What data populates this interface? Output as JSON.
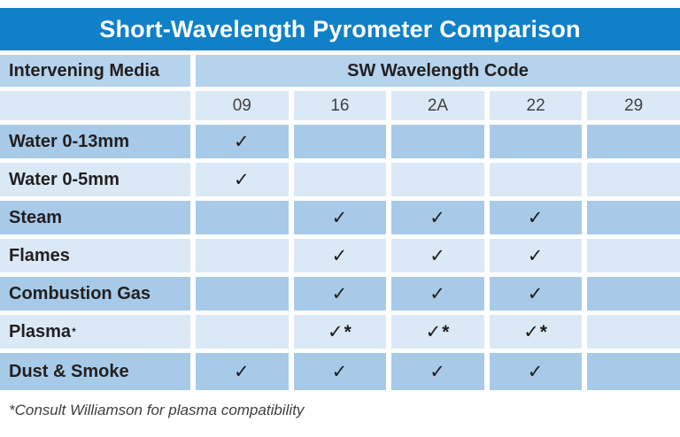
{
  "title": "Short-Wavelength Pyrometer Comparison",
  "table": {
    "header": {
      "media_label": "Intervening Media",
      "code_label": "SW Wavelength Code"
    },
    "codes": [
      "09",
      "16",
      "2A",
      "22",
      "29"
    ],
    "rows": [
      {
        "label": "Water 0-13mm",
        "sup": "",
        "cells": [
          "✓",
          "",
          "",
          "",
          ""
        ]
      },
      {
        "label": "Water 0-5mm",
        "sup": "",
        "cells": [
          "✓",
          "",
          "",
          "",
          ""
        ]
      },
      {
        "label": "Steam",
        "sup": "",
        "cells": [
          "",
          "✓",
          "✓",
          "✓",
          ""
        ]
      },
      {
        "label": "Flames",
        "sup": "",
        "cells": [
          "",
          "✓",
          "✓",
          "✓",
          ""
        ]
      },
      {
        "label": "Combustion Gas",
        "sup": "",
        "cells": [
          "",
          "✓",
          "✓",
          "✓",
          ""
        ]
      },
      {
        "label": "Plasma",
        "sup": "*",
        "cells": [
          "",
          "✓*",
          "✓*",
          "✓*",
          ""
        ]
      },
      {
        "label": "Dust & Smoke",
        "sup": "",
        "cells": [
          "✓",
          "✓",
          "✓",
          "✓",
          ""
        ]
      }
    ],
    "footnote": "*Consult Williamson for plasma compatibility"
  },
  "colors": {
    "title_bar": "#1080c8",
    "title_text": "#ffffff",
    "header_cell": "#b5d3ec",
    "row_dark": "#a7cae8",
    "row_light": "#dbe9f6",
    "text": "#231f20"
  },
  "chart_data": {
    "type": "table",
    "title": "Short-Wavelength Pyrometer Comparison",
    "column_group_label": "SW Wavelength Code",
    "columns": [
      "Intervening Media",
      "09",
      "16",
      "2A",
      "22",
      "29"
    ],
    "rows": [
      [
        "Water 0-13mm",
        "✓",
        "",
        "",
        "",
        ""
      ],
      [
        "Water 0-5mm",
        "✓",
        "",
        "",
        "",
        ""
      ],
      [
        "Steam",
        "",
        "✓",
        "✓",
        "✓",
        ""
      ],
      [
        "Flames",
        "",
        "✓",
        "✓",
        "✓",
        ""
      ],
      [
        "Combustion Gas",
        "",
        "✓",
        "✓",
        "✓",
        ""
      ],
      [
        "Plasma*",
        "",
        "✓*",
        "✓*",
        "✓*",
        ""
      ],
      [
        "Dust & Smoke",
        "✓",
        "✓",
        "✓",
        "✓",
        ""
      ]
    ],
    "footnote": "*Consult Williamson for plasma compatibility"
  }
}
